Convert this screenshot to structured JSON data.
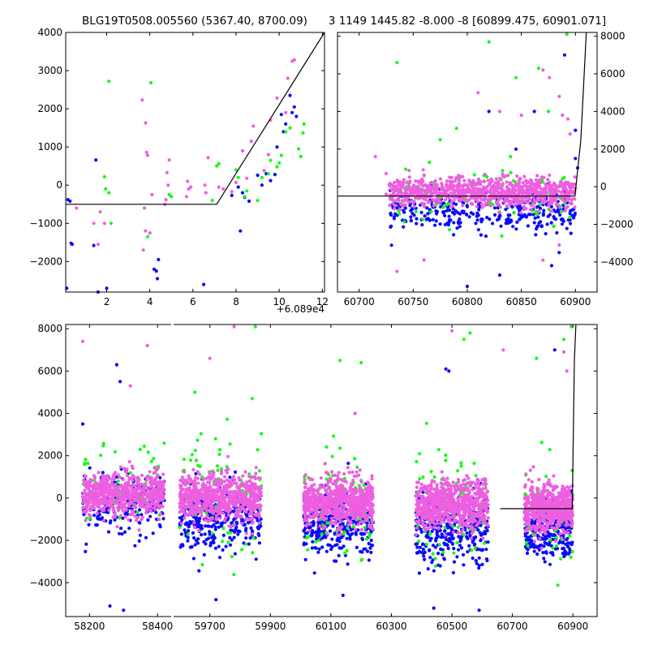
{
  "colors": {
    "blue": "#0a0afa",
    "magenta": "#ee5fe0",
    "green": "#15fb15",
    "model_line": "#000000",
    "axes": "#000000",
    "background": "#ffffff"
  },
  "chart_data": [
    {
      "id": "zoom",
      "type": "scatter",
      "title": "BLG19T0508.005560 (5367.40, 8700.09)",
      "x_offset_label": "+6.089e4",
      "xlim": [
        0.1,
        12.1
      ],
      "ylim": [
        -2800,
        4000
      ],
      "x_ticks": [
        2,
        4,
        6,
        8,
        10,
        12
      ],
      "y_ticks": [
        -2000,
        -1000,
        0,
        1000,
        2000,
        3000,
        4000
      ],
      "y_tick_side": "left",
      "grid": false,
      "model_line": {
        "x": [
          0.1,
          7.1,
          12.1
        ],
        "y": [
          -500,
          -500,
          4000
        ]
      },
      "series": [
        {
          "color": "blue",
          "points": [
            [
              0.2,
              -380
            ],
            [
              0.3,
              -420
            ],
            [
              0.35,
              -1520
            ],
            [
              0.4,
              -1550
            ],
            [
              0.15,
              -2700
            ],
            [
              1.4,
              -1580
            ],
            [
              1.5,
              660
            ],
            [
              1.6,
              -2800
            ],
            [
              2.0,
              -2700
            ],
            [
              4.2,
              -2200
            ],
            [
              4.3,
              -2250
            ],
            [
              4.4,
              -1950
            ],
            [
              4.35,
              -2450
            ],
            [
              6.5,
              -2600
            ],
            [
              7.8,
              -270
            ],
            [
              8.2,
              -1200
            ],
            [
              8.3,
              -200
            ],
            [
              8.4,
              -320
            ],
            [
              8.6,
              -420
            ],
            [
              9.0,
              260
            ],
            [
              9.2,
              0
            ],
            [
              9.4,
              300
            ],
            [
              9.6,
              120
            ],
            [
              9.8,
              280
            ],
            [
              9.9,
              1000
            ],
            [
              10.1,
              1850
            ],
            [
              10.2,
              1400
            ],
            [
              10.3,
              1600
            ],
            [
              10.5,
              2350
            ],
            [
              10.6,
              1900
            ],
            [
              10.7,
              2050
            ],
            [
              10.8,
              1800
            ],
            [
              8.1,
              -50
            ]
          ]
        },
        {
          "color": "magenta",
          "points": [
            [
              0.6,
              -600
            ],
            [
              1.4,
              -1000
            ],
            [
              1.6,
              -1550
            ],
            [
              1.7,
              -700
            ],
            [
              1.9,
              -1000
            ],
            [
              3.7,
              -1700
            ],
            [
              3.75,
              -600
            ],
            [
              3.8,
              -1200
            ],
            [
              3.65,
              2230
            ],
            [
              3.8,
              1630
            ],
            [
              3.85,
              860
            ],
            [
              3.9,
              780
            ],
            [
              4.0,
              -1250
            ],
            [
              4.1,
              -250
            ],
            [
              4.9,
              660
            ],
            [
              4.7,
              -500
            ],
            [
              4.75,
              -380
            ],
            [
              4.8,
              330
            ],
            [
              4.85,
              0
            ],
            [
              5.7,
              -300
            ],
            [
              5.8,
              -100
            ],
            [
              5.9,
              -50
            ],
            [
              5.75,
              100
            ],
            [
              6.6,
              -200
            ],
            [
              6.7,
              720
            ],
            [
              6.55,
              0
            ],
            [
              7.2,
              -50
            ],
            [
              7.4,
              -100
            ],
            [
              7.8,
              -170
            ],
            [
              8.0,
              70
            ],
            [
              8.5,
              180
            ],
            [
              8.7,
              1150
            ],
            [
              8.8,
              1550
            ],
            [
              9.3,
              380
            ],
            [
              9.5,
              800
            ],
            [
              9.6,
              1700
            ],
            [
              9.9,
              2280
            ],
            [
              10.3,
              1900
            ],
            [
              10.4,
              2800
            ],
            [
              10.6,
              3250
            ],
            [
              10.7,
              3280
            ],
            [
              8.3,
              900
            ]
          ]
        },
        {
          "color": "green",
          "points": [
            [
              1.9,
              220
            ],
            [
              1.95,
              -100
            ],
            [
              2.1,
              -200
            ],
            [
              2.2,
              -1000
            ],
            [
              2.1,
              2720
            ],
            [
              3.9,
              -1350
            ],
            [
              4.05,
              2680
            ],
            [
              4.9,
              -250
            ],
            [
              5.0,
              -300
            ],
            [
              6.9,
              -400
            ],
            [
              7.1,
              500
            ],
            [
              7.2,
              560
            ],
            [
              8.0,
              400
            ],
            [
              8.1,
              200
            ],
            [
              8.4,
              -300
            ],
            [
              8.5,
              -150
            ],
            [
              9.0,
              -400
            ],
            [
              9.2,
              200
            ],
            [
              9.5,
              300
            ],
            [
              9.6,
              650
            ],
            [
              9.9,
              480
            ],
            [
              10.0,
              580
            ],
            [
              10.1,
              780
            ],
            [
              10.3,
              1400
            ],
            [
              10.5,
              1500
            ],
            [
              10.9,
              950
            ],
            [
              11.0,
              750
            ],
            [
              11.1,
              1370
            ],
            [
              11.15,
              1600
            ]
          ]
        }
      ]
    },
    {
      "id": "season",
      "type": "scatter",
      "title": "3 1149 1445.82 -8.000 -8 [60899.475, 60901.071]",
      "xlim": [
        60680,
        60920
      ],
      "ylim": [
        -5600,
        8200
      ],
      "x_ticks": [
        60700,
        60750,
        60800,
        60850,
        60900
      ],
      "y_ticks": [
        -4000,
        -2000,
        0,
        2000,
        4000,
        6000,
        8000
      ],
      "y_tick_side": "right",
      "grid": false,
      "model_line": {
        "x": [
          60680,
          60899.5,
          60905,
          60910
        ],
        "y": [
          -500,
          -500,
          2500,
          8200
        ]
      },
      "cloud": {
        "x_range": [
          60728,
          60900
        ],
        "magenta": {
          "n": 900,
          "center": -300,
          "spread": 380
        },
        "blue": {
          "n": 320,
          "center": -1300,
          "spread": 520
        },
        "green": {
          "n": 90,
          "center": -600,
          "spread": 700
        }
      },
      "series": [
        {
          "color": "green",
          "points": [
            [
              60735,
              6600
            ],
            [
              60866,
              6300
            ],
            [
              60845,
              5800
            ],
            [
              60892,
              8100
            ],
            [
              60775,
              2500
            ],
            [
              60875,
              4000
            ],
            [
              60790,
              3100
            ],
            [
              60840,
              1600
            ],
            [
              60765,
              1300
            ],
            [
              60820,
              7700
            ]
          ]
        },
        {
          "color": "magenta",
          "points": [
            [
              60715,
              1600
            ],
            [
              60725,
              700
            ],
            [
              60725,
              -400
            ],
            [
              60738,
              -1200
            ],
            [
              60810,
              5000
            ],
            [
              60830,
              4000
            ],
            [
              60850,
              3800
            ],
            [
              60870,
              6200
            ],
            [
              60876,
              5800
            ],
            [
              60885,
              4800
            ],
            [
              60888,
              3800
            ],
            [
              60893,
              3600
            ],
            [
              60895,
              2800
            ],
            [
              60885,
              -3100
            ],
            [
              60870,
              -3900
            ],
            [
              60760,
              -3900
            ],
            [
              60735,
              -4500
            ]
          ]
        },
        {
          "color": "blue",
          "points": [
            [
              60890,
              7000
            ],
            [
              60862,
              4000
            ],
            [
              60845,
              2000
            ],
            [
              60820,
              4000
            ],
            [
              60900,
              3000
            ],
            [
              60900,
              1500
            ],
            [
              60902,
              1000
            ],
            [
              60800,
              -5300
            ],
            [
              60830,
              -4700
            ],
            [
              60878,
              -4200
            ],
            [
              60885,
              -3500
            ]
          ]
        }
      ]
    },
    {
      "id": "full",
      "type": "scatter",
      "xlim": [
        58130,
        60980
      ],
      "ylim": [
        -5600,
        8200
      ],
      "x_break": {
        "gap_from": 58440,
        "gap_to": 59580
      },
      "x_ticks": [
        58200,
        58400,
        59700,
        59900,
        60100,
        60300,
        60500,
        60700,
        60900
      ],
      "y_ticks": [
        -4000,
        -2000,
        0,
        2000,
        4000,
        6000,
        8000
      ],
      "y_tick_side": "left",
      "grid": false,
      "model_line": {
        "x": [
          60660,
          60898,
          60905,
          60910
        ],
        "y": [
          -500,
          -500,
          6500,
          8200
        ]
      },
      "clouds": [
        {
          "x_range": [
            58180,
            58420
          ],
          "magenta": {
            "n": 650,
            "center": 150,
            "spread": 500
          },
          "blue": {
            "n": 220,
            "center": -200,
            "spread": 700
          },
          "green": {
            "n": 60,
            "center": 400,
            "spread": 1100
          }
        },
        {
          "x_range": [
            59600,
            59870
          ],
          "magenta": {
            "n": 750,
            "center": 0,
            "spread": 550
          },
          "blue": {
            "n": 320,
            "center": -900,
            "spread": 750
          },
          "green": {
            "n": 90,
            "center": 300,
            "spread": 1300
          }
        },
        {
          "x_range": [
            60010,
            60240
          ],
          "magenta": {
            "n": 750,
            "center": -200,
            "spread": 550
          },
          "blue": {
            "n": 320,
            "center": -1200,
            "spread": 750
          },
          "green": {
            "n": 80,
            "center": -300,
            "spread": 1300
          }
        },
        {
          "x_range": [
            60380,
            60620
          ],
          "magenta": {
            "n": 750,
            "center": -300,
            "spread": 550
          },
          "blue": {
            "n": 320,
            "center": -1500,
            "spread": 800
          },
          "green": {
            "n": 80,
            "center": -400,
            "spread": 1400
          }
        },
        {
          "x_range": [
            60740,
            60900
          ],
          "magenta": {
            "n": 600,
            "center": -500,
            "spread": 550
          },
          "blue": {
            "n": 260,
            "center": -1500,
            "spread": 700
          },
          "green": {
            "n": 60,
            "center": -600,
            "spread": 1300
          }
        }
      ],
      "series": [
        {
          "color": "magenta",
          "points": [
            [
              58180,
              7400
            ],
            [
              58370,
              7200
            ],
            [
              58320,
              5300
            ],
            [
              59700,
              6600
            ],
            [
              59780,
              8100
            ],
            [
              60500,
              7900
            ],
            [
              60670,
              7000
            ],
            [
              60880,
              6000
            ],
            [
              60870,
              6900
            ],
            [
              60180,
              4000
            ]
          ]
        },
        {
          "color": "green",
          "points": [
            [
              59850,
              8100
            ],
            [
              60560,
              7800
            ],
            [
              60540,
              7500
            ],
            [
              60200,
              6400
            ],
            [
              60130,
              6500
            ],
            [
              60780,
              6600
            ],
            [
              60895,
              8100
            ],
            [
              60870,
              7500
            ],
            [
              59650,
              5000
            ],
            [
              59840,
              4700
            ]
          ]
        },
        {
          "color": "blue",
          "points": [
            [
              58280,
              6300
            ],
            [
              58290,
              5500
            ],
            [
              58180,
              3500
            ],
            [
              60480,
              6100
            ],
            [
              60490,
              6000
            ],
            [
              60840,
              7000
            ],
            [
              58300,
              -5300
            ],
            [
              58260,
              -5100
            ],
            [
              60590,
              -5300
            ],
            [
              59720,
              -4800
            ],
            [
              60140,
              -4600
            ],
            [
              60440,
              -5200
            ]
          ]
        }
      ]
    }
  ]
}
